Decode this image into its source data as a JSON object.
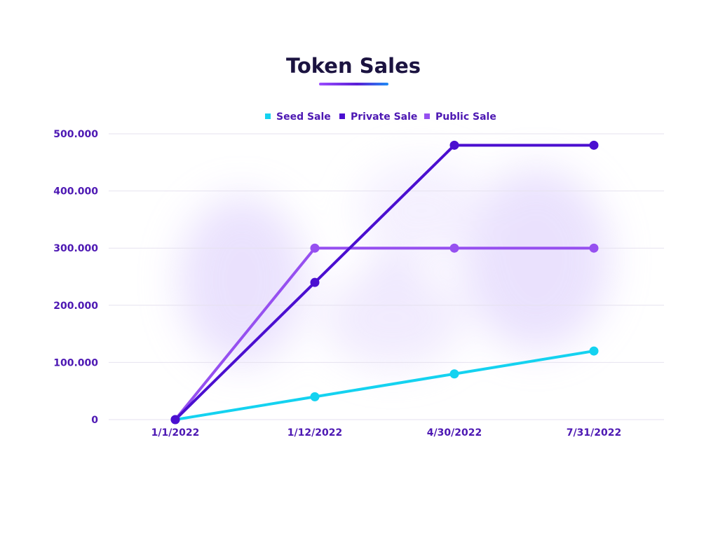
{
  "chart_data": {
    "type": "line",
    "title": "Token Sales",
    "x": [
      "1/1/2022",
      "1/12/2022",
      "4/30/2022",
      "7/31/2022"
    ],
    "y_ticks": [
      "0",
      "100.000",
      "200.000",
      "300.000",
      "400.000",
      "500.000"
    ],
    "ylim": [
      0,
      500000
    ],
    "grid": true,
    "legend_position": "top-center",
    "series": [
      {
        "name": "Seed Sale",
        "color": "#14d2f0",
        "values": [
          0,
          40000,
          80000,
          120000
        ]
      },
      {
        "name": "Private Sale",
        "color": "#4b0fd0",
        "values": [
          0,
          240000,
          480000,
          480000
        ]
      },
      {
        "name": "Public Sale",
        "color": "#9650f0",
        "values": [
          0,
          300000,
          300000,
          300000
        ]
      }
    ]
  }
}
